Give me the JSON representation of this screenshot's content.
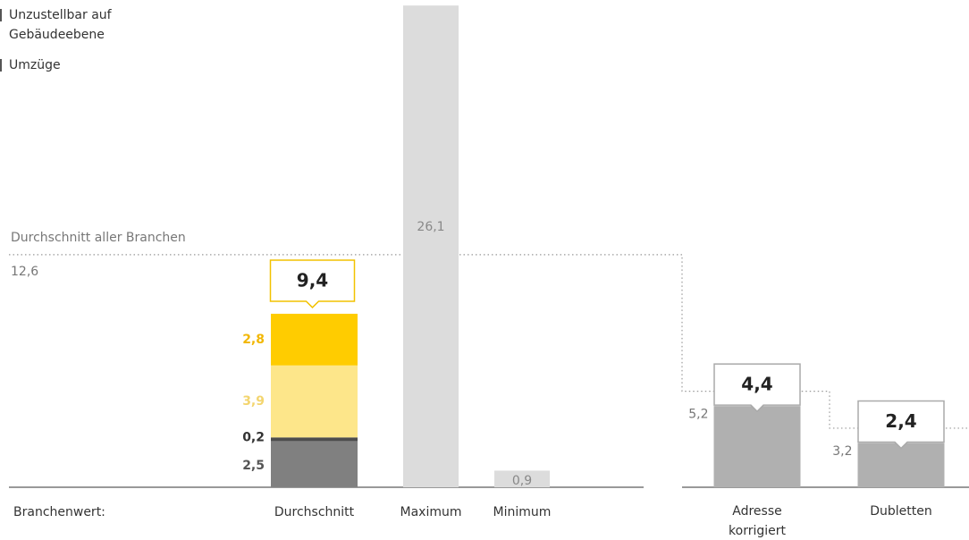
{
  "chart_data": {
    "type": "bar",
    "legend": [
      {
        "name": "Unzustellbar auf Gebäudeebene",
        "color": "#555555"
      },
      {
        "name": "Umzüge",
        "color": "#555555"
      }
    ],
    "reference": {
      "label": "Durchschnitt aller Branchen",
      "value": 12.6,
      "value_label": "12,6"
    },
    "group_label": "Branchenwert:",
    "stack": {
      "category": "Durchschnitt",
      "values": [
        2.5,
        0.2,
        3.9,
        2.8
      ],
      "value_labels": [
        "2,5",
        "0,2",
        "3,9",
        "2,8"
      ],
      "colors": [
        "#808080",
        "#4d4d4d",
        "#fde68a",
        "#ffcc00"
      ],
      "label_colors": [
        "#555555",
        "#333333",
        "#f3d56f",
        "#f2b705"
      ],
      "total": 9.4,
      "total_label": "9,4"
    },
    "bars": [
      {
        "category": "Maximum",
        "value": 26.1,
        "value_label": "26,1",
        "color": "#dcdcdc"
      },
      {
        "category": "Minimum",
        "value": 0.9,
        "value_label": "0,9",
        "color": "#dcdcdc"
      }
    ],
    "kpis": [
      {
        "category": "Adresse korrigiert",
        "value": 4.4,
        "value_label": "4,4",
        "reference": 5.2,
        "reference_label": "5,2",
        "color": "#b0b0b0"
      },
      {
        "category": "Dubletten",
        "value": 2.4,
        "value_label": "2,4",
        "reference": 3.2,
        "reference_label": "3,2",
        "color": "#b0b0b0"
      }
    ],
    "ylim": [
      0,
      26.4
    ]
  }
}
